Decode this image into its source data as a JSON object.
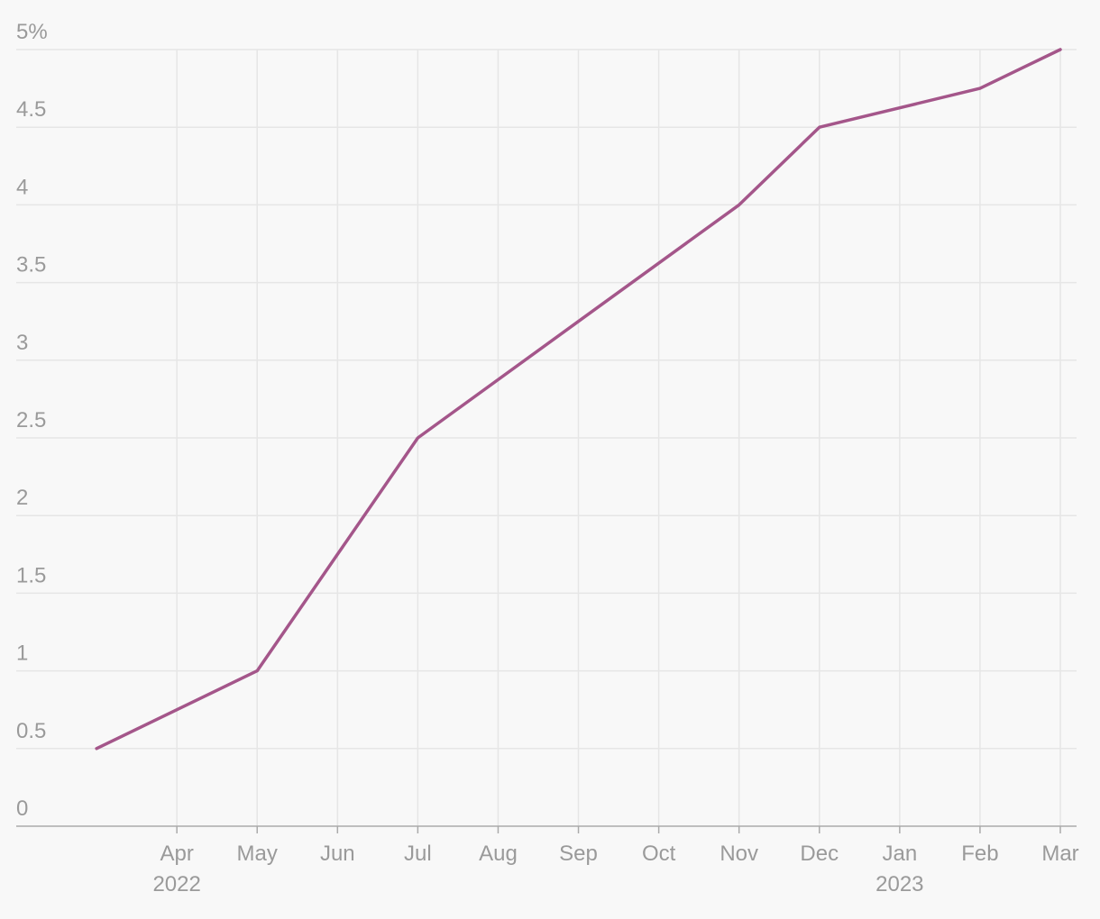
{
  "chart_data": {
    "type": "line",
    "x": [
      "2022-03",
      "2022-05",
      "2022-06",
      "2022-07",
      "2022-09",
      "2022-11",
      "2022-12",
      "2023-02",
      "2023-03"
    ],
    "series": [
      {
        "color": "#a4568a",
        "values": [
          0.5,
          1,
          1.75,
          2.5,
          3.25,
          4,
          4.5,
          4.75,
          5
        ]
      }
    ],
    "xlim": [
      "2022-02",
      "2023-03"
    ],
    "xticks": [
      {
        "value": "2022-04",
        "label": "Apr"
      },
      {
        "value": "2022-05",
        "label": "May"
      },
      {
        "value": "2022-06",
        "label": "Jun"
      },
      {
        "value": "2022-07",
        "label": "Jul"
      },
      {
        "value": "2022-08",
        "label": "Aug"
      },
      {
        "value": "2022-09",
        "label": "Sep"
      },
      {
        "value": "2022-10",
        "label": "Oct"
      },
      {
        "value": "2022-11",
        "label": "Nov"
      },
      {
        "value": "2022-12",
        "label": "Dec"
      },
      {
        "value": "2023-01",
        "label": "Jan"
      },
      {
        "value": "2023-02",
        "label": "Feb"
      },
      {
        "value": "2023-03",
        "label": "Mar"
      }
    ],
    "x_year_labels": [
      {
        "value": "2022-04",
        "label": "2022"
      },
      {
        "value": "2023-01",
        "label": "2023"
      }
    ],
    "ylim": [
      0,
      5
    ],
    "yticks": [
      0,
      0.5,
      1,
      1.5,
      2,
      2.5,
      3,
      3.5,
      4,
      4.5,
      {
        "value": 5,
        "label": "5%"
      }
    ],
    "grid": true
  }
}
